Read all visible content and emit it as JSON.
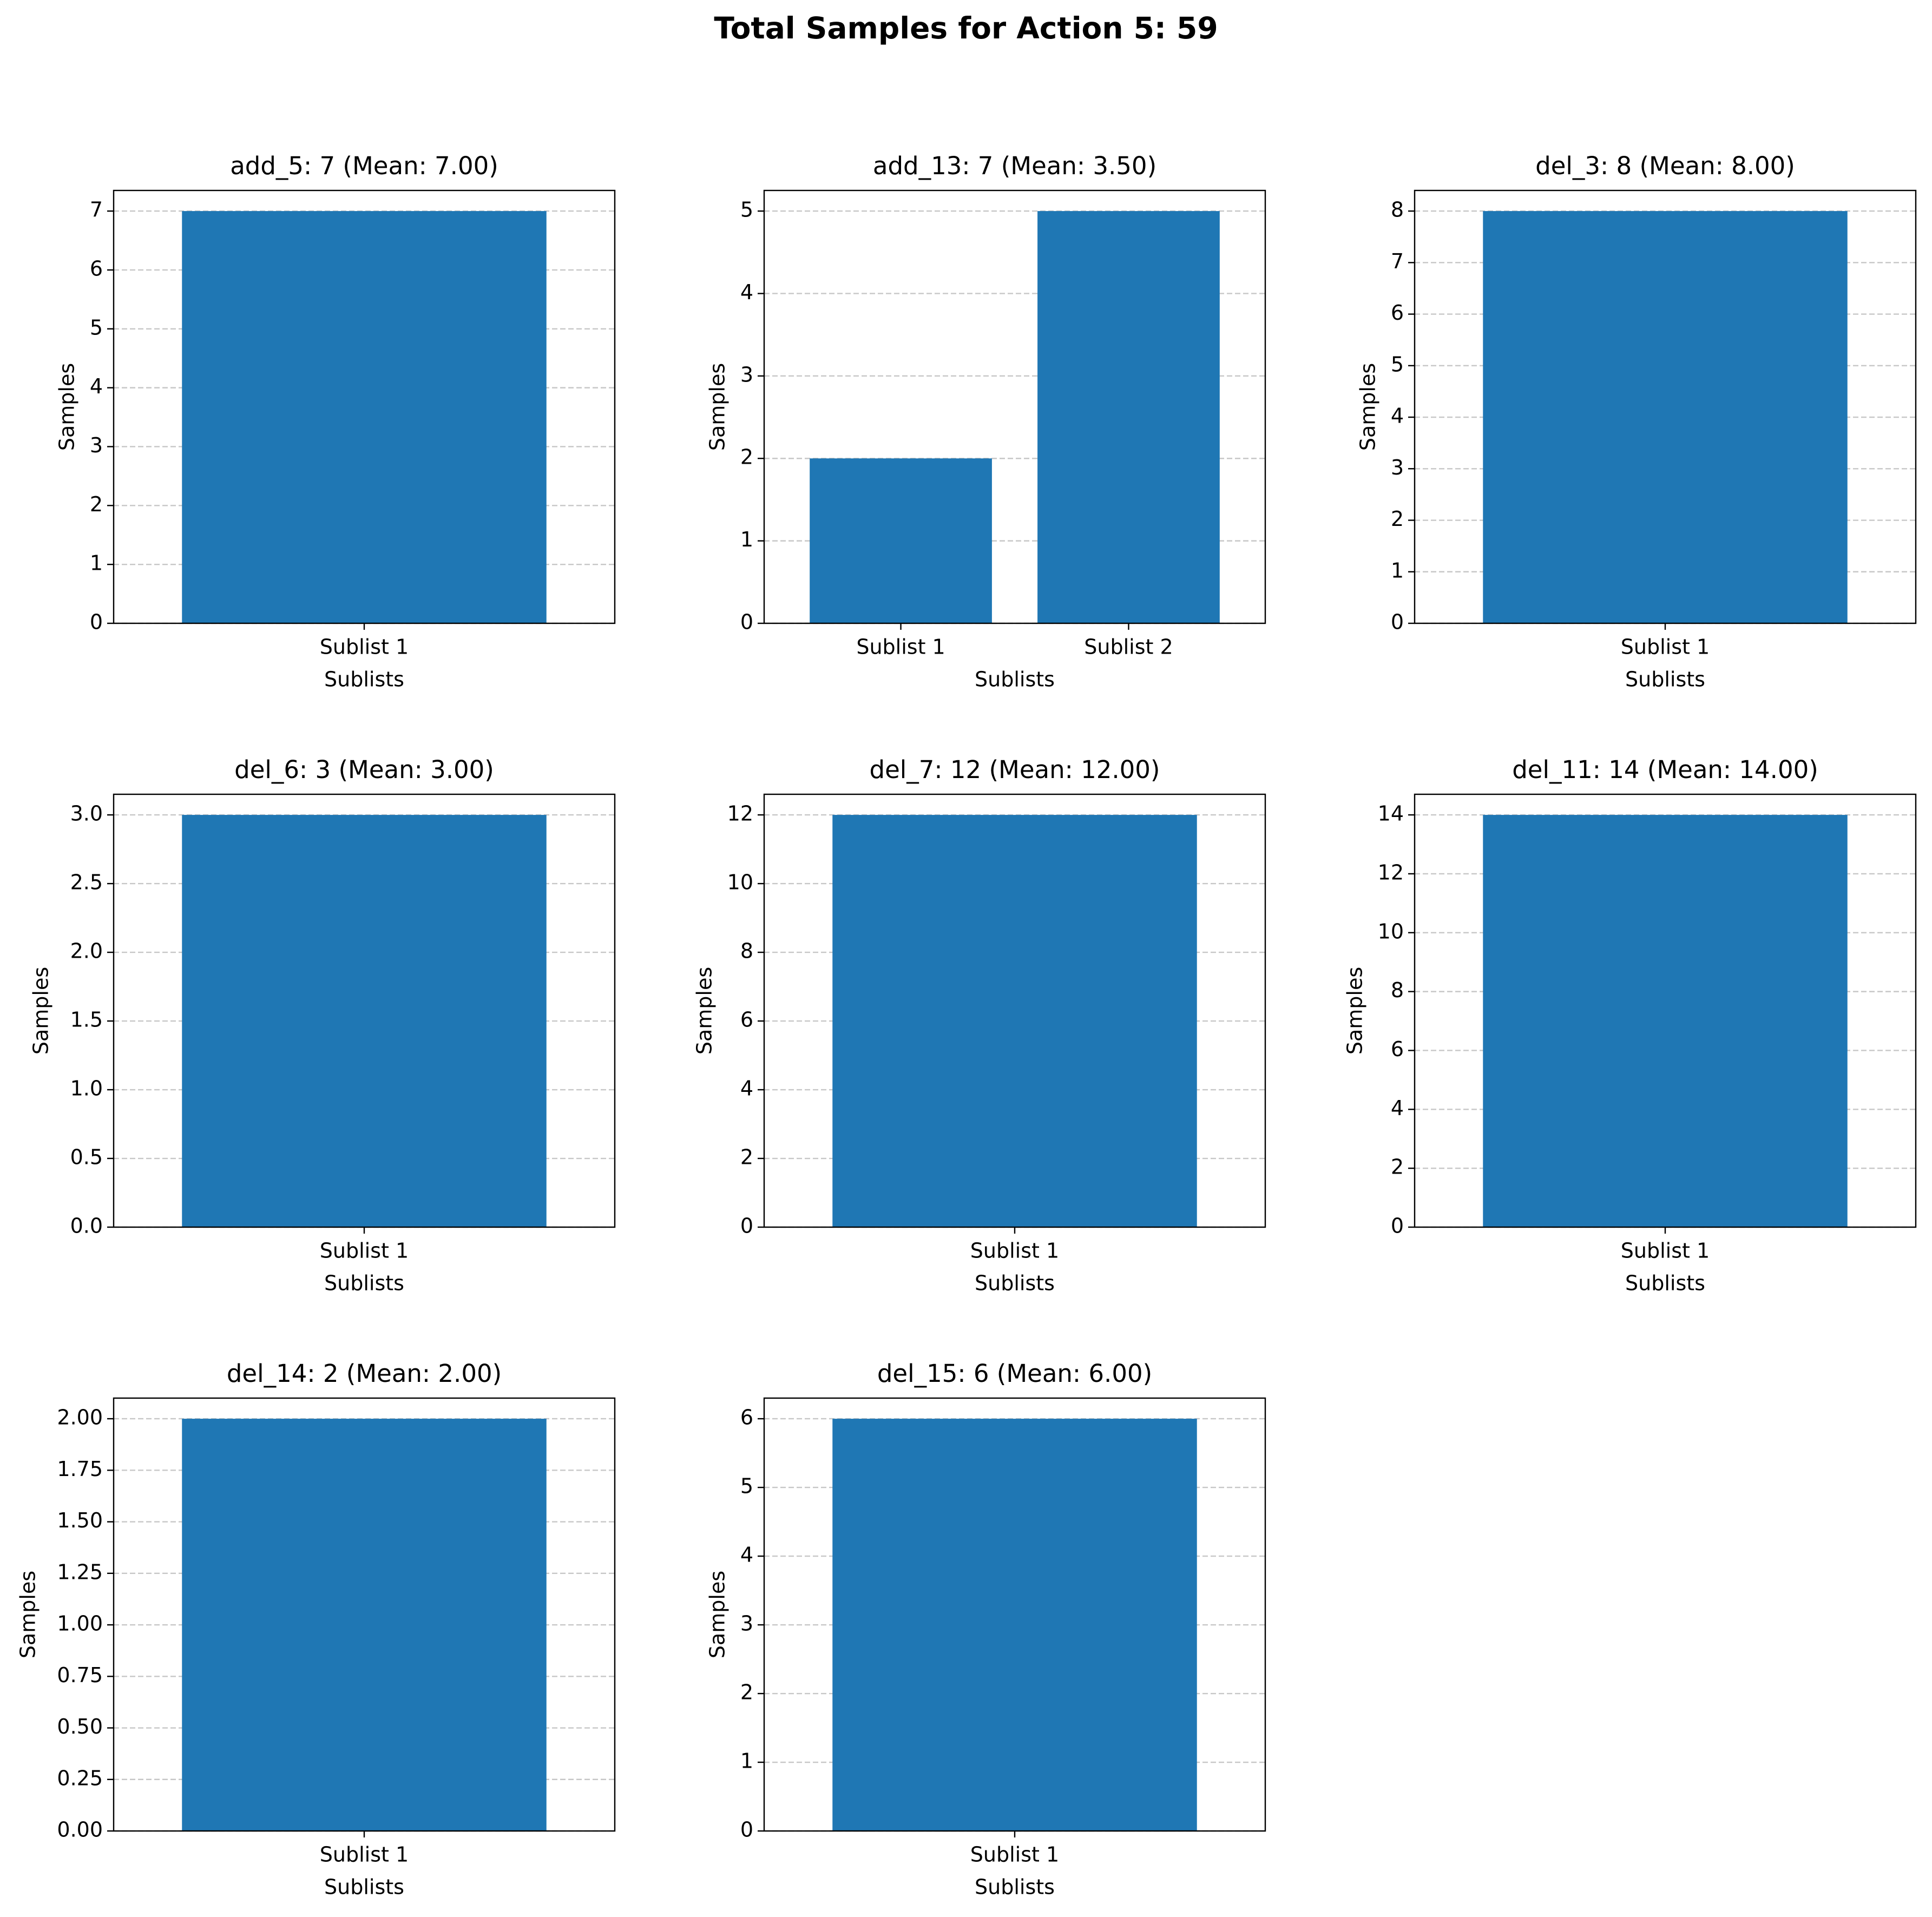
{
  "figure_title": "Total Samples for Action 5: 59",
  "colors": {
    "bar": "#1f77b4"
  },
  "chart_data": [
    {
      "type": "bar",
      "title": "add_5: 7 (Mean: 7.00)",
      "xlabel": "Sublists",
      "ylabel": "Samples",
      "categories": [
        "Sublist 1"
      ],
      "values": [
        7
      ],
      "ylim": [
        0,
        7.35
      ],
      "yticks": [
        "0",
        "1",
        "2",
        "3",
        "4",
        "5",
        "6",
        "7"
      ],
      "ytick_values": [
        0,
        1,
        2,
        3,
        4,
        5,
        6,
        7
      ],
      "grid": "y, dashed"
    },
    {
      "type": "bar",
      "title": "add_13: 7 (Mean: 3.50)",
      "xlabel": "Sublists",
      "ylabel": "Samples",
      "categories": [
        "Sublist 1",
        "Sublist 2"
      ],
      "values": [
        2,
        5
      ],
      "ylim": [
        0,
        5.25
      ],
      "yticks": [
        "0",
        "1",
        "2",
        "3",
        "4",
        "5"
      ],
      "ytick_values": [
        0,
        1,
        2,
        3,
        4,
        5
      ],
      "grid": "y, dashed"
    },
    {
      "type": "bar",
      "title": "del_3: 8 (Mean: 8.00)",
      "xlabel": "Sublists",
      "ylabel": "Samples",
      "categories": [
        "Sublist 1"
      ],
      "values": [
        8
      ],
      "ylim": [
        0,
        8.4
      ],
      "yticks": [
        "0",
        "1",
        "2",
        "3",
        "4",
        "5",
        "6",
        "7",
        "8"
      ],
      "ytick_values": [
        0,
        1,
        2,
        3,
        4,
        5,
        6,
        7,
        8
      ],
      "grid": "y, dashed"
    },
    {
      "type": "bar",
      "title": "del_6: 3 (Mean: 3.00)",
      "xlabel": "Sublists",
      "ylabel": "Samples",
      "categories": [
        "Sublist 1"
      ],
      "values": [
        3
      ],
      "ylim": [
        0,
        3.15
      ],
      "yticks": [
        "0.0",
        "0.5",
        "1.0",
        "1.5",
        "2.0",
        "2.5",
        "3.0"
      ],
      "ytick_values": [
        0,
        0.5,
        1,
        1.5,
        2,
        2.5,
        3
      ],
      "grid": "y, dashed"
    },
    {
      "type": "bar",
      "title": "del_7: 12 (Mean: 12.00)",
      "xlabel": "Sublists",
      "ylabel": "Samples",
      "categories": [
        "Sublist 1"
      ],
      "values": [
        12
      ],
      "ylim": [
        0,
        12.6
      ],
      "yticks": [
        "0",
        "2",
        "4",
        "6",
        "8",
        "10",
        "12"
      ],
      "ytick_values": [
        0,
        2,
        4,
        6,
        8,
        10,
        12
      ],
      "grid": "y, dashed"
    },
    {
      "type": "bar",
      "title": "del_11: 14 (Mean: 14.00)",
      "xlabel": "Sublists",
      "ylabel": "Samples",
      "categories": [
        "Sublist 1"
      ],
      "values": [
        14
      ],
      "ylim": [
        0,
        14.7
      ],
      "yticks": [
        "0",
        "2",
        "4",
        "6",
        "8",
        "10",
        "12",
        "14"
      ],
      "ytick_values": [
        0,
        2,
        4,
        6,
        8,
        10,
        12,
        14
      ],
      "grid": "y, dashed"
    },
    {
      "type": "bar",
      "title": "del_14: 2 (Mean: 2.00)",
      "xlabel": "Sublists",
      "ylabel": "Samples",
      "categories": [
        "Sublist 1"
      ],
      "values": [
        2
      ],
      "ylim": [
        0,
        2.1
      ],
      "yticks": [
        "0.00",
        "0.25",
        "0.50",
        "0.75",
        "1.00",
        "1.25",
        "1.50",
        "1.75",
        "2.00"
      ],
      "ytick_values": [
        0,
        0.25,
        0.5,
        0.75,
        1,
        1.25,
        1.5,
        1.75,
        2
      ],
      "grid": "y, dashed"
    },
    {
      "type": "bar",
      "title": "del_15: 6 (Mean: 6.00)",
      "xlabel": "Sublists",
      "ylabel": "Samples",
      "categories": [
        "Sublist 1"
      ],
      "values": [
        6
      ],
      "ylim": [
        0,
        6.3
      ],
      "yticks": [
        "0",
        "1",
        "2",
        "3",
        "4",
        "5",
        "6"
      ],
      "ytick_values": [
        0,
        1,
        2,
        3,
        4,
        5,
        6
      ],
      "grid": "y, dashed"
    }
  ]
}
